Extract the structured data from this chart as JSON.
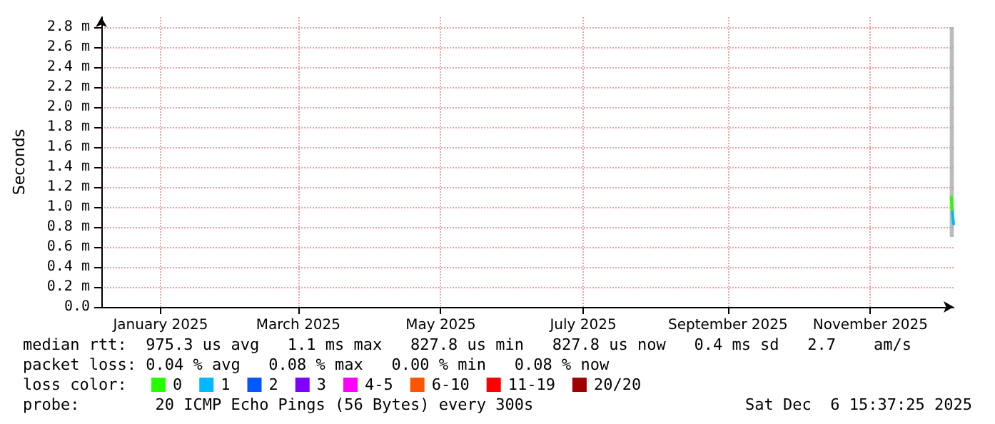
{
  "chart_data": {
    "type": "line",
    "ylabel": "Seconds",
    "legend_title": "loss color:",
    "legend": "bottom left",
    "grid": true,
    "marker": "none",
    "line_style": "solid",
    "xlim": [
      "2024-12-06T15:30",
      "2025-12-06T15:30"
    ],
    "xticks": [
      {
        "value": "2025-01-01",
        "label": "January 2025"
      },
      {
        "value": "2025-03-01",
        "label": "March 2025"
      },
      {
        "value": "2025-05-01",
        "label": "May 2025"
      },
      {
        "value": "2025-07-01",
        "label": "July 2025"
      },
      {
        "value": "2025-09-01",
        "label": "September 2025"
      },
      {
        "value": "2025-11-01",
        "label": "November 2025"
      }
    ],
    "ylim": [
      0,
      2.9
    ],
    "yticks": [
      {
        "value": 0,
        "label": "0.0"
      },
      {
        "value": 0.2,
        "label": "0.2 m"
      },
      {
        "value": 0.4,
        "label": "0.4 m"
      },
      {
        "value": 0.6,
        "label": "0.6 m"
      },
      {
        "value": 0.8,
        "label": "0.8 m"
      },
      {
        "value": 1.0,
        "label": "1.0 m"
      },
      {
        "value": 1.2,
        "label": "1.2 m"
      },
      {
        "value": 1.4,
        "label": "1.4 m"
      },
      {
        "value": 1.6,
        "label": "1.6 m"
      },
      {
        "value": 1.8,
        "label": "1.8 m"
      },
      {
        "value": 2.0,
        "label": "2.0 m"
      },
      {
        "value": 2.2,
        "label": "2.2 m"
      },
      {
        "value": 2.4,
        "label": "2.4 m"
      },
      {
        "value": 2.6,
        "label": "2.6 m"
      },
      {
        "value": 2.8,
        "label": "2.8 m"
      }
    ],
    "series": [
      {
        "name": "0",
        "color": "#26ff00",
        "x": [
          "2025-12-05T15:00",
          "2025-12-06T03:00"
        ],
        "values": [
          1.1,
          0.95
        ],
        "lower": [
          0.7,
          0.7
        ],
        "upper": [
          2.8,
          2.8
        ]
      },
      {
        "name": "1",
        "color": "#00b8ff",
        "x": [
          "2025-12-06T03:00",
          "2025-12-06T15:00"
        ],
        "values": [
          0.95,
          0.83
        ]
      },
      {
        "name": "2",
        "color": "#0059ff"
      },
      {
        "name": "3",
        "color": "#7e00ff"
      },
      {
        "name": "4-5",
        "color": "#ff00ff"
      },
      {
        "name": "6-10",
        "color": "#ff5500"
      },
      {
        "name": "11-19",
        "color": "#ff0000"
      },
      {
        "name": "20/20",
        "color": "#a10000"
      }
    ],
    "annotations": [
      "median rtt:  975.3 us avg   1.1 ms max   827.8 us min   827.8 us now   0.4 ms sd   2.7    am/s",
      "packet loss: 0.04 % avg   0.08 % max   0.00 % min   0.08 % now",
      "probe:        20 ICMP Echo Pings (56 Bytes) every 300s",
      "Sat Dec  6 15:37:25 2025"
    ]
  }
}
